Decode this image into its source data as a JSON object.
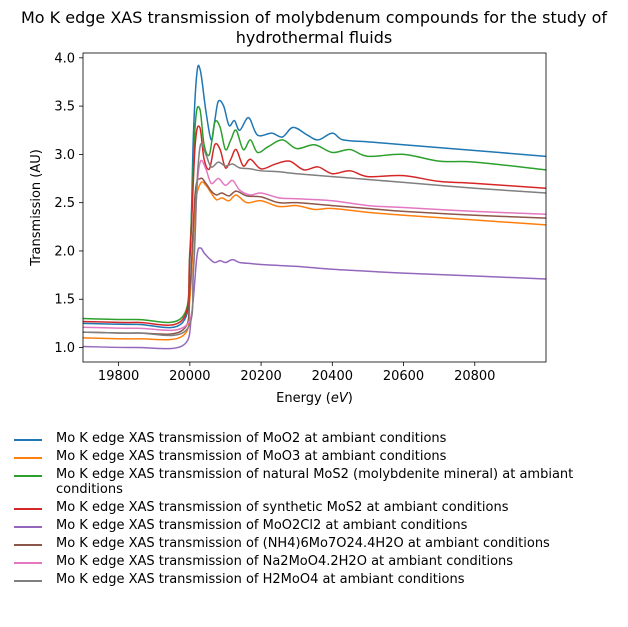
{
  "chart_data": {
    "type": "line",
    "title": "Mo K edge XAS transmission of molybdenum compounds for the study of hydrothermal fluids",
    "xlabel_main": "Energy (",
    "xlabel_unit": "eV",
    "xlabel_close": ")",
    "ylabel": "Transmission (AU)",
    "xlim": [
      19700,
      21000
    ],
    "ylim": [
      0.85,
      4.05
    ],
    "xticks": [
      19800,
      20000,
      20200,
      20400,
      20600,
      20800
    ],
    "yticks": [
      1.0,
      1.5,
      2.0,
      2.5,
      3.0,
      3.5,
      4.0
    ],
    "xtick_labels": [
      "19800",
      "20000",
      "20200",
      "20400",
      "20600",
      "20800"
    ],
    "ytick_labels": [
      "1.0",
      "1.5",
      "2.0",
      "2.5",
      "3.0",
      "3.5",
      "4.0"
    ],
    "legend_position": "below",
    "series": [
      {
        "name": "Mo K edge XAS transmission of MoO2 at ambiant conditions",
        "color": "#1f77b4",
        "x": [
          19700,
          19850,
          19980,
          20000,
          20010,
          20020,
          20030,
          20045,
          20060,
          20070,
          20080,
          20095,
          20110,
          20125,
          20140,
          20165,
          20190,
          20230,
          20260,
          20290,
          20330,
          20360,
          20400,
          20430,
          20500,
          20600,
          20800,
          21000
        ],
        "y": [
          1.25,
          1.24,
          1.26,
          1.9,
          3.2,
          3.85,
          3.86,
          3.45,
          3.15,
          3.35,
          3.55,
          3.5,
          3.3,
          3.35,
          3.25,
          3.38,
          3.2,
          3.22,
          3.18,
          3.28,
          3.2,
          3.15,
          3.22,
          3.15,
          3.13,
          3.1,
          3.04,
          2.98
        ]
      },
      {
        "name": "Mo K edge XAS transmission of MoO3 at ambiant conditions",
        "color": "#ff7f0e",
        "x": [
          19700,
          19850,
          19980,
          20000,
          20015,
          20030,
          20045,
          20060,
          20075,
          20090,
          20110,
          20130,
          20160,
          20200,
          20250,
          20300,
          20350,
          20400,
          20500,
          20600,
          20800,
          21000
        ],
        "y": [
          1.1,
          1.09,
          1.12,
          1.5,
          2.45,
          2.7,
          2.68,
          2.6,
          2.53,
          2.55,
          2.52,
          2.58,
          2.5,
          2.52,
          2.46,
          2.47,
          2.43,
          2.44,
          2.4,
          2.37,
          2.32,
          2.27
        ]
      },
      {
        "name": "Mo K edge XAS transmission of natural MoS2 (molybdenite mineral) at ambiant conditions",
        "color": "#2ca02c",
        "x": [
          19700,
          19850,
          19980,
          20000,
          20015,
          20028,
          20040,
          20055,
          20070,
          20085,
          20100,
          20115,
          20130,
          20150,
          20170,
          20190,
          20220,
          20260,
          20300,
          20350,
          20400,
          20450,
          20500,
          20600,
          20700,
          20800,
          21000
        ],
        "y": [
          1.3,
          1.29,
          1.32,
          2.0,
          3.3,
          3.47,
          3.1,
          3.0,
          3.33,
          3.28,
          3.05,
          3.15,
          3.25,
          3.05,
          3.15,
          3.02,
          3.08,
          3.15,
          3.06,
          3.1,
          3.02,
          3.05,
          2.98,
          3.0,
          2.93,
          2.92,
          2.84
        ]
      },
      {
        "name": "Mo K edge XAS transmission of synthetic MoS2 at ambiant conditions",
        "color": "#d62728",
        "x": [
          19700,
          19850,
          19980,
          20000,
          20015,
          20028,
          20040,
          20055,
          20070,
          20085,
          20100,
          20115,
          20130,
          20150,
          20170,
          20200,
          20240,
          20280,
          20320,
          20360,
          20400,
          20450,
          20500,
          20600,
          20700,
          20800,
          21000
        ],
        "y": [
          1.27,
          1.26,
          1.29,
          1.95,
          3.1,
          3.28,
          2.95,
          2.85,
          3.1,
          3.05,
          2.86,
          2.95,
          3.05,
          2.88,
          2.95,
          2.85,
          2.9,
          2.93,
          2.84,
          2.87,
          2.8,
          2.83,
          2.77,
          2.78,
          2.72,
          2.7,
          2.65
        ]
      },
      {
        "name": "Mo K edge XAS transmission of MoO2Cl2 at ambiant conditions",
        "color": "#9467bd",
        "x": [
          19700,
          19850,
          19980,
          20005,
          20020,
          20030,
          20040,
          20055,
          20070,
          20085,
          20100,
          20120,
          20140,
          20170,
          20200,
          20250,
          20300,
          20400,
          20500,
          20600,
          20800,
          21000
        ],
        "y": [
          1.01,
          1.0,
          1.02,
          1.35,
          1.95,
          2.03,
          1.98,
          1.92,
          1.88,
          1.9,
          1.88,
          1.91,
          1.88,
          1.87,
          1.86,
          1.85,
          1.84,
          1.81,
          1.79,
          1.77,
          1.74,
          1.71
        ]
      },
      {
        "name": "Mo K edge XAS transmission of (NH4)6Mo7O24.4H2O at ambiant conditions",
        "color": "#8c564b",
        "x": [
          19700,
          19850,
          19980,
          20000,
          20015,
          20030,
          20045,
          20060,
          20075,
          20090,
          20110,
          20130,
          20160,
          20200,
          20250,
          20300,
          20400,
          20500,
          20600,
          20800,
          21000
        ],
        "y": [
          1.16,
          1.15,
          1.18,
          1.6,
          2.6,
          2.75,
          2.7,
          2.62,
          2.58,
          2.6,
          2.57,
          2.62,
          2.57,
          2.56,
          2.5,
          2.5,
          2.47,
          2.44,
          2.41,
          2.37,
          2.34
        ]
      },
      {
        "name": "Mo K edge XAS transmission of Na2MoO4.2H2O at ambiant conditions",
        "color": "#e377c2",
        "x": [
          19700,
          19850,
          19990,
          20010,
          20020,
          20030,
          20045,
          20060,
          20080,
          20100,
          20120,
          20140,
          20170,
          20200,
          20250,
          20300,
          20400,
          20500,
          20600,
          20800,
          21000
        ],
        "y": [
          1.21,
          1.2,
          1.23,
          1.8,
          2.65,
          2.93,
          2.85,
          2.7,
          2.75,
          2.68,
          2.73,
          2.63,
          2.58,
          2.6,
          2.55,
          2.54,
          2.52,
          2.47,
          2.45,
          2.41,
          2.38
        ]
      },
      {
        "name": "Mo K edge XAS transmission of H2MoO4 at ambiant conditions",
        "color": "#7f7f7f",
        "x": [
          19700,
          19850,
          19990,
          20010,
          20020,
          20030,
          20045,
          20060,
          20080,
          20100,
          20120,
          20140,
          20170,
          20200,
          20250,
          20300,
          20400,
          20500,
          20600,
          20800,
          21000
        ],
        "y": [
          1.16,
          1.15,
          1.18,
          1.8,
          2.7,
          3.1,
          3.0,
          2.87,
          2.92,
          2.88,
          2.9,
          2.86,
          2.85,
          2.83,
          2.82,
          2.8,
          2.77,
          2.74,
          2.71,
          2.65,
          2.6
        ]
      }
    ]
  }
}
